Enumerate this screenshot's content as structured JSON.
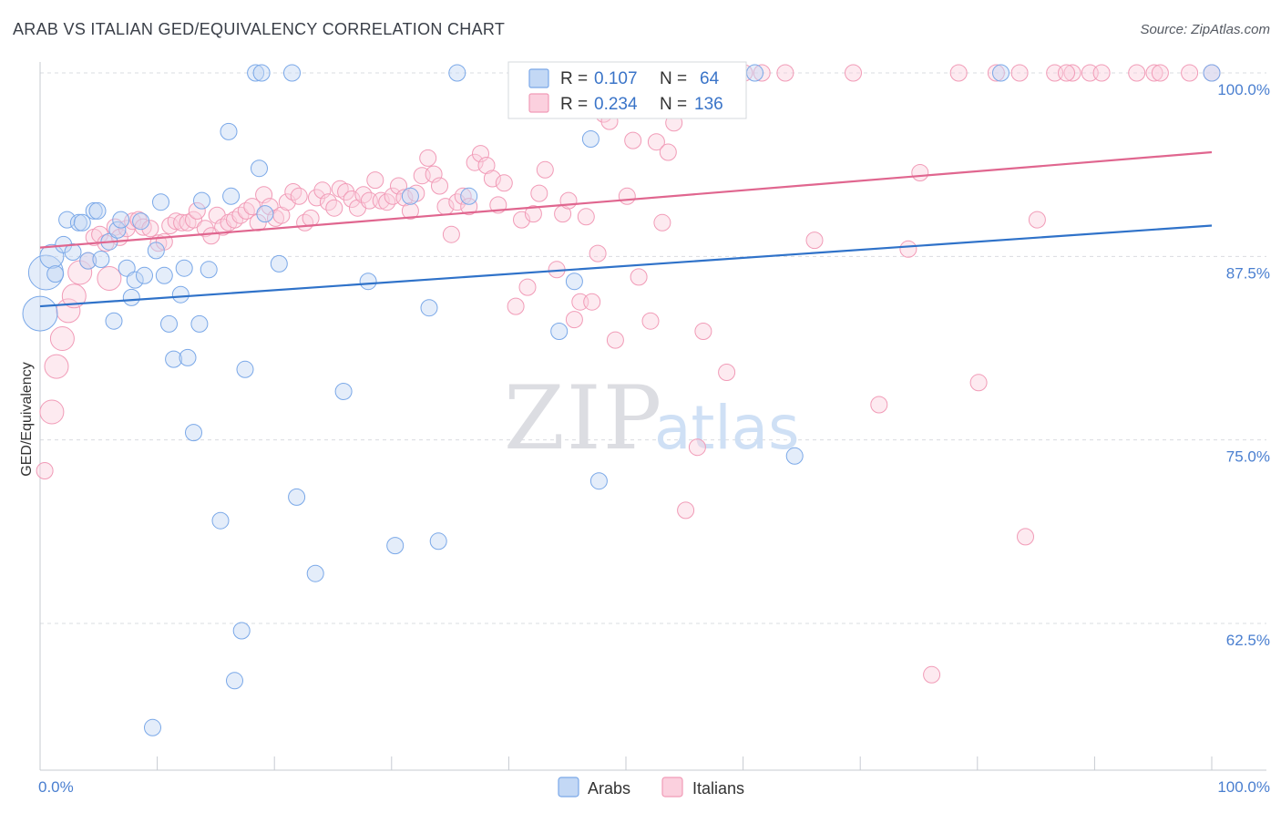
{
  "header": {
    "title": "ARAB VS ITALIAN GED/EQUIVALENCY CORRELATION CHART",
    "source": "Source: ZipAtlas.com"
  },
  "watermark": {
    "zip": "ZIP",
    "atlas": "atlas"
  },
  "legend": {
    "rows": [
      {
        "r_label": "R =",
        "r_value": "0.107",
        "n_label": "N =",
        "n_value": "64",
        "color": "#7aa8e8"
      },
      {
        "r_label": "R =",
        "r_value": "0.234",
        "n_label": "N =",
        "n_value": "136",
        "color": "#f19bb7"
      }
    ]
  },
  "chart_data": {
    "type": "scatter",
    "title": "ARAB VS ITALIAN GED/EQUIVALENCY CORRELATION CHART",
    "xlabel": "",
    "ylabel": "GED/Equivalency",
    "xlim": [
      0,
      100
    ],
    "ylim": [
      50,
      102
    ],
    "x_tick_labels": [
      "0.0%",
      "100.0%"
    ],
    "y_ticks": [
      62.5,
      75.0,
      87.5,
      100.0
    ],
    "y_tick_labels": [
      "62.5%",
      "75.0%",
      "87.5%",
      "100.0%"
    ],
    "grid": "horizontal dashed",
    "legend_position": "top-center",
    "series": [
      {
        "name": "Arabs",
        "color": "#7aa8e8",
        "line_color": "#2f72c9",
        "r": 0.107,
        "n": 64,
        "trend": [
          [
            0,
            84.1
          ],
          [
            100,
            89.6
          ]
        ],
        "points": [
          [
            0,
            83.6,
            3
          ],
          [
            0.5,
            86.4,
            3
          ],
          [
            1,
            87.5,
            2
          ],
          [
            1.3,
            86.3,
            1
          ],
          [
            2,
            88.3,
            1
          ],
          [
            2.3,
            90.0,
            1
          ],
          [
            2.8,
            87.8,
            1
          ],
          [
            3.3,
            89.8,
            1
          ],
          [
            3.6,
            89.8,
            1
          ],
          [
            4.1,
            87.2,
            1
          ],
          [
            4.6,
            90.6,
            1
          ],
          [
            4.9,
            90.6,
            1
          ],
          [
            5.2,
            87.3,
            1
          ],
          [
            5.9,
            88.5,
            1
          ],
          [
            6.3,
            83.1,
            1
          ],
          [
            6.6,
            89.3,
            1
          ],
          [
            6.9,
            90.0,
            1
          ],
          [
            7.4,
            86.7,
            1
          ],
          [
            7.8,
            84.7,
            1
          ],
          [
            8.1,
            85.9,
            1
          ],
          [
            8.6,
            89.9,
            1
          ],
          [
            8.9,
            86.2,
            1
          ],
          [
            9.6,
            55.4,
            1
          ],
          [
            9.9,
            87.9,
            1
          ],
          [
            10.3,
            91.2,
            1
          ],
          [
            10.6,
            86.2,
            1
          ],
          [
            11.0,
            82.9,
            1
          ],
          [
            11.4,
            80.5,
            1
          ],
          [
            12.0,
            84.9,
            1
          ],
          [
            12.3,
            86.7,
            1
          ],
          [
            12.6,
            80.6,
            1
          ],
          [
            13.1,
            75.5,
            1
          ],
          [
            13.6,
            82.9,
            1
          ],
          [
            13.8,
            91.3,
            1
          ],
          [
            14.4,
            86.6,
            1
          ],
          [
            15.4,
            69.5,
            1
          ],
          [
            16.1,
            96.0,
            1
          ],
          [
            16.3,
            91.6,
            1
          ],
          [
            16.6,
            58.6,
            1
          ],
          [
            17.2,
            62.0,
            1
          ],
          [
            17.5,
            79.8,
            1
          ],
          [
            18.4,
            100.0,
            1
          ],
          [
            18.7,
            93.5,
            1
          ],
          [
            18.9,
            100.0,
            1
          ],
          [
            19.2,
            90.4,
            1
          ],
          [
            20.4,
            87.0,
            1
          ],
          [
            21.5,
            100.0,
            1
          ],
          [
            21.9,
            71.1,
            1
          ],
          [
            23.5,
            65.9,
            1
          ],
          [
            25.9,
            78.3,
            1
          ],
          [
            28.0,
            85.8,
            1
          ],
          [
            30.3,
            67.8,
            1
          ],
          [
            31.6,
            91.6,
            1
          ],
          [
            33.2,
            84.0,
            1
          ],
          [
            34.0,
            68.1,
            1
          ],
          [
            35.6,
            100.0,
            1
          ],
          [
            36.6,
            91.6,
            1
          ],
          [
            44.3,
            82.4,
            1
          ],
          [
            45.6,
            85.8,
            1
          ],
          [
            47.0,
            95.5,
            1
          ],
          [
            47.7,
            72.2,
            1
          ],
          [
            61.0,
            100.0,
            1
          ],
          [
            64.4,
            73.9,
            1
          ],
          [
            82.0,
            100.0,
            1
          ],
          [
            100,
            100.0,
            1
          ]
        ]
      },
      {
        "name": "Italians",
        "color": "#f19bb7",
        "line_color": "#e0668f",
        "r": 0.234,
        "n": 136,
        "trend": [
          [
            0,
            88.1
          ],
          [
            100,
            94.6
          ]
        ],
        "points": [
          [
            0.4,
            72.9,
            1
          ],
          [
            1.0,
            76.9,
            2
          ],
          [
            1.4,
            80.0,
            2
          ],
          [
            1.9,
            81.9,
            2
          ],
          [
            2.4,
            83.8,
            2
          ],
          [
            2.9,
            84.8,
            2
          ],
          [
            3.4,
            86.4,
            2
          ],
          [
            4.1,
            87.2,
            1
          ],
          [
            4.6,
            88.8,
            1
          ],
          [
            5.1,
            89.0,
            1
          ],
          [
            5.6,
            88.4,
            1
          ],
          [
            5.9,
            86.0,
            2
          ],
          [
            6.4,
            89.5,
            1
          ],
          [
            6.8,
            88.8,
            1
          ],
          [
            7.4,
            89.4,
            1
          ],
          [
            7.9,
            89.9,
            1
          ],
          [
            8.4,
            90.0,
            1
          ],
          [
            8.8,
            89.5,
            1
          ],
          [
            9.4,
            89.4,
            1
          ],
          [
            10.1,
            88.4,
            1
          ],
          [
            10.6,
            88.5,
            1
          ],
          [
            11.1,
            89.6,
            1
          ],
          [
            11.6,
            89.9,
            1
          ],
          [
            12.1,
            89.8,
            1
          ],
          [
            12.6,
            89.8,
            1
          ],
          [
            13.1,
            90.0,
            1
          ],
          [
            13.4,
            90.6,
            1
          ],
          [
            14.1,
            89.4,
            1
          ],
          [
            14.6,
            88.9,
            1
          ],
          [
            15.1,
            90.3,
            1
          ],
          [
            15.6,
            89.5,
            1
          ],
          [
            16.1,
            89.8,
            1
          ],
          [
            16.6,
            90.0,
            1
          ],
          [
            17.1,
            90.3,
            1
          ],
          [
            17.6,
            90.6,
            1
          ],
          [
            18.1,
            90.9,
            1
          ],
          [
            18.6,
            89.8,
            1
          ],
          [
            19.1,
            91.7,
            1
          ],
          [
            19.6,
            90.9,
            1
          ],
          [
            20.1,
            90.1,
            1
          ],
          [
            20.6,
            90.3,
            1
          ],
          [
            21.1,
            91.2,
            1
          ],
          [
            21.6,
            91.9,
            1
          ],
          [
            22.1,
            91.6,
            1
          ],
          [
            22.6,
            89.8,
            1
          ],
          [
            23.1,
            90.1,
            1
          ],
          [
            23.6,
            91.5,
            1
          ],
          [
            24.1,
            92.0,
            1
          ],
          [
            24.6,
            91.2,
            1
          ],
          [
            25.1,
            90.8,
            1
          ],
          [
            25.6,
            92.1,
            1
          ],
          [
            26.1,
            91.9,
            1
          ],
          [
            26.6,
            91.4,
            1
          ],
          [
            27.1,
            90.8,
            1
          ],
          [
            27.6,
            91.7,
            1
          ],
          [
            28.1,
            91.3,
            1
          ],
          [
            28.6,
            92.7,
            1
          ],
          [
            29.1,
            91.3,
            1
          ],
          [
            29.6,
            91.2,
            1
          ],
          [
            30.1,
            91.6,
            1
          ],
          [
            30.6,
            92.3,
            1
          ],
          [
            31.1,
            91.5,
            1
          ],
          [
            31.6,
            90.6,
            1
          ],
          [
            32.1,
            91.8,
            1
          ],
          [
            32.6,
            93.0,
            1
          ],
          [
            33.1,
            94.2,
            1
          ],
          [
            33.6,
            93.1,
            1
          ],
          [
            34.1,
            92.3,
            1
          ],
          [
            34.6,
            90.9,
            1
          ],
          [
            35.1,
            89.0,
            1
          ],
          [
            35.6,
            91.2,
            1
          ],
          [
            36.1,
            91.6,
            1
          ],
          [
            36.6,
            90.9,
            1
          ],
          [
            37.1,
            93.9,
            1
          ],
          [
            37.6,
            94.5,
            1
          ],
          [
            38.1,
            93.7,
            1
          ],
          [
            38.6,
            92.8,
            1
          ],
          [
            39.1,
            91.0,
            1
          ],
          [
            39.6,
            92.5,
            1
          ],
          [
            40.6,
            84.1,
            1
          ],
          [
            41.1,
            90.0,
            1
          ],
          [
            41.6,
            85.4,
            1
          ],
          [
            42.1,
            90.4,
            1
          ],
          [
            42.6,
            91.8,
            1
          ],
          [
            43.1,
            93.4,
            1
          ],
          [
            44.1,
            86.6,
            1
          ],
          [
            44.6,
            90.4,
            1
          ],
          [
            45.1,
            91.3,
            1
          ],
          [
            45.6,
            83.2,
            1
          ],
          [
            46.1,
            84.4,
            1
          ],
          [
            46.6,
            90.2,
            1
          ],
          [
            47.1,
            84.4,
            1
          ],
          [
            47.6,
            87.7,
            1
          ],
          [
            48.1,
            97.2,
            1
          ],
          [
            48.6,
            96.7,
            1
          ],
          [
            49.1,
            81.8,
            1
          ],
          [
            50.1,
            91.6,
            1
          ],
          [
            50.6,
            95.4,
            1
          ],
          [
            51.1,
            86.1,
            1
          ],
          [
            52.1,
            83.1,
            1
          ],
          [
            52.6,
            95.3,
            1
          ],
          [
            53.1,
            89.8,
            1
          ],
          [
            53.6,
            94.6,
            1
          ],
          [
            54.1,
            96.6,
            1
          ],
          [
            55.1,
            70.2,
            1
          ],
          [
            56.6,
            82.4,
            1
          ],
          [
            58.6,
            79.6,
            1
          ],
          [
            61.6,
            100.0,
            1
          ],
          [
            63.6,
            100.0,
            1
          ],
          [
            66.1,
            88.6,
            1
          ],
          [
            69.4,
            100.0,
            1
          ],
          [
            71.6,
            77.4,
            1
          ],
          [
            74.1,
            88.0,
            1
          ],
          [
            75.1,
            93.2,
            1
          ],
          [
            76.1,
            59.0,
            1
          ],
          [
            78.4,
            100.0,
            1
          ],
          [
            80.1,
            78.9,
            1
          ],
          [
            83.6,
            100.0,
            1
          ],
          [
            84.1,
            68.4,
            1
          ],
          [
            85.1,
            90.0,
            1
          ],
          [
            86.6,
            100.0,
            1
          ],
          [
            88.1,
            100.0,
            1
          ],
          [
            89.6,
            100.0,
            1
          ],
          [
            90.6,
            100.0,
            1
          ],
          [
            93.6,
            100.0,
            1
          ],
          [
            95.1,
            100.0,
            1
          ],
          [
            95.6,
            100.0,
            1
          ],
          [
            98.1,
            100.0,
            1
          ],
          [
            56.1,
            74.5,
            1
          ],
          [
            57.6,
            100.0,
            1
          ],
          [
            58.1,
            100.0,
            1
          ],
          [
            59.1,
            100.0,
            1
          ],
          [
            60.1,
            100.0,
            1
          ],
          [
            81.6,
            100.0,
            1
          ],
          [
            100,
            100.0,
            1
          ],
          [
            87.6,
            100.0,
            1
          ]
        ]
      }
    ]
  }
}
